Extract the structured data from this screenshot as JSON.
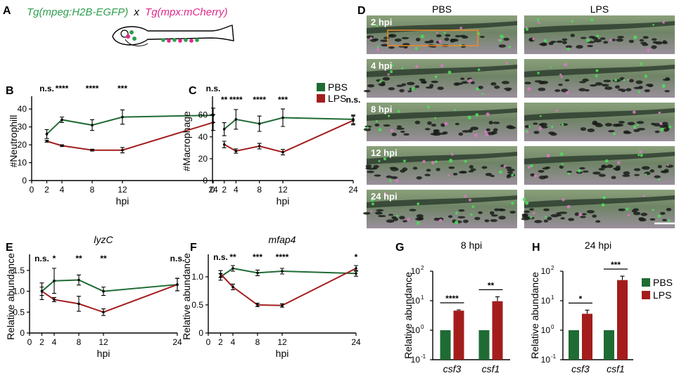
{
  "panels": {
    "A": {
      "letter": "A",
      "tg_left": "Tg(mpeg:H2B-EGFP)",
      "cross": "x",
      "tg_right": "Tg(mpx:mCherry)",
      "colors": {
        "green": "#2e9e4e",
        "magenta": "#e0288a"
      }
    },
    "D": {
      "letter": "D",
      "col_headers": [
        "PBS",
        "LPS"
      ],
      "row_labels": [
        "2 hpi",
        "4 hpi",
        "8 hpi",
        "12 hpi",
        "24 hpi"
      ]
    },
    "legend_top": {
      "items": [
        "PBS",
        "LPS"
      ]
    },
    "legend_bottom": {
      "items": [
        "PBS",
        "LPS"
      ]
    }
  },
  "colors": {
    "pbs": "#1f6b34",
    "lps": "#a31d1d"
  },
  "chart_data": [
    {
      "id": "B",
      "letter": "B",
      "type": "line",
      "xlabel": "hpi",
      "ylabel": "#Neutrophill",
      "xticks": [
        0,
        2,
        4,
        8,
        12,
        24
      ],
      "yticks": [
        0,
        10,
        20,
        30,
        40
      ],
      "xlim": [
        0,
        24
      ],
      "ylim": [
        0,
        44
      ],
      "scale": "linear",
      "x": [
        2,
        4,
        8,
        12,
        24
      ],
      "series": [
        {
          "name": "PBS",
          "values": [
            26,
            34,
            31,
            35.5,
            36.5
          ],
          "err": [
            2.5,
            1.5,
            3,
            4,
            4
          ]
        },
        {
          "name": "LPS",
          "values": [
            22,
            19.5,
            17,
            17,
            32.5
          ],
          "err": [
            0.5,
            0.5,
            0.5,
            1.5,
            4.5
          ]
        }
      ],
      "significance": [
        "n.s.",
        "****",
        "****",
        "***",
        "n.s."
      ]
    },
    {
      "id": "C",
      "letter": "C",
      "type": "line",
      "xlabel": "hpi",
      "ylabel": "#Macrophage",
      "xticks": [
        0,
        2,
        4,
        8,
        12,
        24
      ],
      "yticks": [
        0,
        20,
        40,
        60
      ],
      "xlim": [
        0,
        24
      ],
      "ylim": [
        0,
        72
      ],
      "scale": "linear",
      "x": [
        2,
        4,
        8,
        12,
        24
      ],
      "series": [
        {
          "name": "PBS",
          "values": [
            47,
            56,
            52,
            57.5,
            56
          ],
          "err": [
            6,
            9,
            7,
            8,
            4
          ]
        },
        {
          "name": "LPS",
          "values": [
            33,
            27,
            31.5,
            26,
            55
          ],
          "err": [
            3,
            2,
            2.5,
            2.5,
            4
          ]
        }
      ],
      "significance": [
        "**",
        "****",
        "****",
        "***",
        "n.s."
      ],
      "legend": [
        "PBS",
        "LPS"
      ]
    },
    {
      "id": "E",
      "letter": "E",
      "type": "line",
      "title": "lyzC",
      "xlabel": "hpi",
      "ylabel": "Relative abundance",
      "xticks": [
        0,
        2,
        4,
        8,
        12,
        24
      ],
      "yticks": [
        0,
        0.5,
        1.0,
        1.5
      ],
      "yticklabels": [
        "0",
        "0.5",
        "1.0",
        "1.5"
      ],
      "xlim": [
        0,
        24
      ],
      "ylim": [
        0,
        1.75
      ],
      "scale": "linear",
      "x": [
        2,
        4,
        8,
        12,
        24
      ],
      "series": [
        {
          "name": "PBS",
          "values": [
            1.0,
            1.25,
            1.27,
            1.0,
            1.16
          ],
          "err": [
            0.2,
            0.3,
            0.12,
            0.1,
            0.15
          ]
        },
        {
          "name": "LPS",
          "values": [
            1.0,
            0.8,
            0.7,
            0.5,
            1.16
          ],
          "err": [
            0.1,
            0.05,
            0.18,
            0.08,
            0.15
          ]
        }
      ],
      "significance": [
        "n.s.",
        "*",
        "**",
        "**",
        "n.s."
      ]
    },
    {
      "id": "F",
      "letter": "F",
      "type": "line",
      "title": "mfap4",
      "xlabel": "hpi",
      "ylabel": "Relative abundance",
      "xticks": [
        0,
        2,
        4,
        8,
        12,
        24
      ],
      "yticks": [
        0,
        0.5,
        1.0
      ],
      "yticklabels": [
        "0",
        "0.5",
        "1.0"
      ],
      "xlim": [
        0,
        24
      ],
      "ylim": [
        0,
        1.3
      ],
      "scale": "linear",
      "x": [
        2,
        4,
        8,
        12,
        24
      ],
      "series": [
        {
          "name": "PBS",
          "values": [
            1.0,
            1.15,
            1.07,
            1.1,
            1.06
          ],
          "err": [
            0.06,
            0.05,
            0.05,
            0.05,
            0.05
          ]
        },
        {
          "name": "LPS",
          "values": [
            1.05,
            0.82,
            0.5,
            0.49,
            1.15
          ],
          "err": [
            0.06,
            0.05,
            0.03,
            0.03,
            0.05
          ]
        }
      ],
      "significance": [
        "n.s.",
        "**",
        "***",
        "****",
        "*"
      ]
    },
    {
      "id": "G",
      "letter": "G",
      "type": "bar",
      "title": "8 hpi",
      "ylabel": "Relative abundance",
      "categories": [
        "csf3",
        "csf1"
      ],
      "scale": "log",
      "ylim": [
        0.1,
        100
      ],
      "yticks": [
        0.1,
        1,
        10,
        100
      ],
      "yticklabels_base": [
        "10",
        "10",
        "10",
        "10"
      ],
      "yticklabels_exp": [
        "-1",
        "0",
        "1",
        "2"
      ],
      "series": [
        {
          "name": "PBS",
          "values": [
            1,
            1
          ],
          "err": [
            0,
            0
          ]
        },
        {
          "name": "LPS",
          "values": [
            4.6,
            9.6
          ],
          "err": [
            0.3,
            4
          ]
        }
      ],
      "significance": [
        "****",
        "**"
      ]
    },
    {
      "id": "H",
      "letter": "H",
      "type": "bar",
      "title": "24 hpi",
      "ylabel": "Relative abundance",
      "categories": [
        "csf3",
        "csf1"
      ],
      "scale": "log",
      "ylim": [
        0.1,
        100
      ],
      "yticks": [
        0.1,
        1,
        10,
        100
      ],
      "yticklabels_base": [
        "10",
        "10",
        "10",
        "10"
      ],
      "yticklabels_exp": [
        "-1",
        "0",
        "1",
        "2"
      ],
      "series": [
        {
          "name": "PBS",
          "values": [
            1,
            1
          ],
          "err": [
            0,
            0
          ]
        },
        {
          "name": "LPS",
          "values": [
            3.6,
            50
          ],
          "err": [
            1.2,
            18
          ]
        }
      ],
      "significance": [
        "*",
        "***"
      ],
      "legend": [
        "PBS",
        "LPS"
      ]
    }
  ]
}
